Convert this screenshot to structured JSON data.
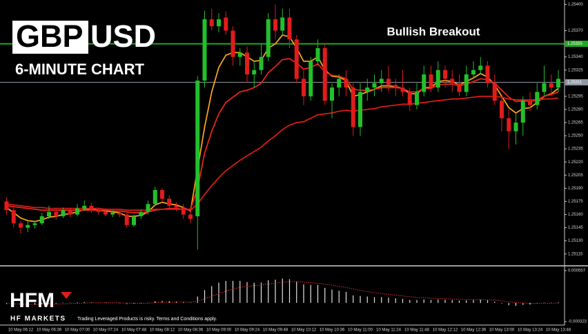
{
  "chart_data": {
    "type": "candlestick",
    "title": {
      "highlight": "GBP",
      "rest": "USD"
    },
    "subtitle": "6-MINUTE CHART",
    "annotation": "Bullish Breakout",
    "categories": [
      null,
      null,
      "10 May 06:12",
      null,
      null,
      null,
      "10 May 06:36",
      null,
      null,
      null,
      "10 May 07:00",
      null,
      null,
      null,
      "10 May 07:24",
      null,
      null,
      null,
      "10 May 07:48",
      null,
      null,
      null,
      "10 May 08:12",
      null,
      null,
      null,
      "10 May 08:36",
      null,
      null,
      null,
      "10 May 09:00",
      null,
      null,
      null,
      "10 May 09:24",
      null,
      null,
      null,
      "10 May 09:48",
      null,
      null,
      null,
      "10 May 10:12",
      null,
      null,
      null,
      "10 May 10:36",
      null,
      null,
      null,
      "10 May 11:00",
      null,
      null,
      null,
      "10 May 11:24",
      null,
      null,
      null,
      "10 May 11:48",
      null,
      null,
      null,
      "10 May 12:12",
      null,
      null,
      null,
      "10 May 12:36",
      null,
      null,
      null,
      "10 May 13:00",
      null,
      null,
      null,
      "10 May 13:24",
      null,
      null,
      null,
      "10 May 13:48"
    ],
    "open": [
      1.25175,
      1.25165,
      1.2515,
      1.25145,
      1.25148,
      1.2515,
      1.25158,
      1.25163,
      1.25158,
      1.25165,
      1.2516,
      1.25167,
      1.2517,
      1.25165,
      1.25163,
      1.2516,
      1.25162,
      1.2516,
      1.25148,
      1.25158,
      1.25163,
      1.25172,
      1.25188,
      1.25178,
      1.2517,
      1.25168,
      1.2516,
      1.25158,
      1.25313,
      1.25383,
      1.25375,
      1.25385,
      1.2537,
      1.2534,
      1.25345,
      1.2532,
      1.25325,
      1.2534,
      1.25383,
      1.2537,
      1.25385,
      1.2536,
      1.25315,
      1.25295,
      1.25335,
      1.2535,
      1.2529,
      1.25305,
      1.25315,
      1.25305,
      1.2526,
      1.253,
      1.25305,
      1.2531,
      1.25315,
      1.25308,
      1.25305,
      1.253,
      1.25285,
      1.253,
      1.2532,
      1.25305,
      1.25325,
      1.25315,
      1.2531,
      1.253,
      1.2532,
      1.25325,
      1.2533,
      1.2531,
      1.2529,
      1.2527,
      1.25255,
      1.25265,
      1.2529,
      1.25285,
      1.253,
      1.2531,
      1.25305
    ],
    "high": [
      1.2518,
      1.25168,
      1.25153,
      1.25152,
      1.25153,
      1.25162,
      1.2517,
      1.25166,
      1.25168,
      1.25167,
      1.25172,
      1.25176,
      1.25173,
      1.25168,
      1.25166,
      1.25165,
      1.25164,
      1.25162,
      1.2516,
      1.25166,
      1.25176,
      1.25192,
      1.2519,
      1.25182,
      1.25174,
      1.25172,
      1.25168,
      1.25318,
      1.25393,
      1.25395,
      1.2539,
      1.25392,
      1.25375,
      1.2535,
      1.25352,
      1.25335,
      1.25355,
      1.2539,
      1.254,
      1.25395,
      1.25395,
      1.25365,
      1.25325,
      1.2534,
      1.2536,
      1.25355,
      1.2531,
      1.2532,
      1.25325,
      1.2531,
      1.2531,
      1.25315,
      1.2532,
      1.25325,
      1.2533,
      1.25315,
      1.25325,
      1.25305,
      1.2531,
      1.2533,
      1.2533,
      1.25335,
      1.2533,
      1.25325,
      1.2532,
      1.2533,
      1.25335,
      1.2534,
      1.25335,
      1.2532,
      1.25295,
      1.2528,
      1.25275,
      1.25295,
      1.253,
      1.2531,
      1.2533,
      1.2532,
      1.25325
    ],
    "low": [
      1.2516,
      1.25145,
      1.25138,
      1.2514,
      1.25144,
      1.25148,
      1.25155,
      1.25154,
      1.25156,
      1.25157,
      1.25158,
      1.25164,
      1.25162,
      1.2516,
      1.25158,
      1.25157,
      1.25157,
      1.25145,
      1.25146,
      1.25155,
      1.2516,
      1.2517,
      1.25174,
      1.25166,
      1.25164,
      1.25155,
      1.2515,
      1.2512,
      1.25305,
      1.2537,
      1.25368,
      1.25365,
      1.2533,
      1.2533,
      1.2531,
      1.25305,
      1.2532,
      1.25335,
      1.2536,
      1.25365,
      1.2535,
      1.2531,
      1.25285,
      1.2529,
      1.2533,
      1.25285,
      1.2527,
      1.25295,
      1.25295,
      1.2525,
      1.2525,
      1.2529,
      1.25295,
      1.253,
      1.253,
      1.25295,
      1.25295,
      1.25278,
      1.2528,
      1.25295,
      1.253,
      1.253,
      1.25305,
      1.253,
      1.25295,
      1.25295,
      1.25315,
      1.2532,
      1.25305,
      1.25285,
      1.25255,
      1.25235,
      1.2524,
      1.2525,
      1.25278,
      1.2528,
      1.25295,
      1.25295,
      1.253
    ],
    "close": [
      1.25165,
      1.2515,
      1.25145,
      1.25148,
      1.2515,
      1.25158,
      1.25163,
      1.25158,
      1.25165,
      1.2516,
      1.25167,
      1.2517,
      1.25165,
      1.25163,
      1.2516,
      1.25162,
      1.2516,
      1.25148,
      1.25158,
      1.25163,
      1.25172,
      1.25188,
      1.25178,
      1.2517,
      1.25168,
      1.2516,
      1.25155,
      1.25313,
      1.25383,
      1.25375,
      1.25383,
      1.2537,
      1.2534,
      1.25345,
      1.2532,
      1.25325,
      1.2534,
      1.25383,
      1.2537,
      1.25385,
      1.2536,
      1.25315,
      1.25295,
      1.25335,
      1.2535,
      1.2529,
      1.25305,
      1.25315,
      1.25305,
      1.2526,
      1.253,
      1.25305,
      1.2531,
      1.25315,
      1.25308,
      1.25305,
      1.253,
      1.25285,
      1.253,
      1.2532,
      1.25305,
      1.25325,
      1.25315,
      1.2531,
      1.253,
      1.2532,
      1.25325,
      1.2533,
      1.2531,
      1.2529,
      1.2527,
      1.25255,
      1.25265,
      1.2529,
      1.25285,
      1.253,
      1.2531,
      1.25305,
      1.25315
    ],
    "up_color": "#22c02b",
    "down_color": "#e01c1c",
    "lines": [
      {
        "color": "#f5a31e",
        "values": [
          1.25168,
          1.25162,
          1.25156,
          1.25153,
          1.25152,
          1.25154,
          1.25157,
          1.25158,
          1.2516,
          1.25161,
          1.25163,
          1.25166,
          1.25166,
          1.25165,
          1.25164,
          1.25163,
          1.25162,
          1.25158,
          1.25158,
          1.25159,
          1.25163,
          1.25171,
          1.25174,
          1.25172,
          1.25171,
          1.25168,
          1.25164,
          1.25212,
          1.2526,
          1.253,
          1.25328,
          1.25342,
          1.25345,
          1.25345,
          1.2534,
          1.25335,
          1.25336,
          1.2535,
          1.25355,
          1.25365,
          1.25363,
          1.2535,
          1.25335,
          1.25335,
          1.2534,
          1.25325,
          1.25318,
          1.25317,
          1.25313,
          1.25295,
          1.25297,
          1.253,
          1.25303,
          1.25307,
          1.25307,
          1.25306,
          1.25304,
          1.25298,
          1.25298,
          1.25305,
          1.25305,
          1.25312,
          1.25313,
          1.25312,
          1.25308,
          1.25312,
          1.25316,
          1.25321,
          1.25317,
          1.25308,
          1.25295,
          1.25282,
          1.25276,
          1.25281,
          1.25282,
          1.25288,
          1.25295,
          1.25298,
          1.25304
        ]
      },
      {
        "color": "#e8241c",
        "values": [
          1.2517,
          1.25169,
          1.25168,
          1.25167,
          1.25166,
          1.25165,
          1.25165,
          1.25165,
          1.25165,
          1.25165,
          1.25165,
          1.25165,
          1.25165,
          1.25165,
          1.25165,
          1.25164,
          1.25164,
          1.25163,
          1.25162,
          1.25162,
          1.25163,
          1.25165,
          1.25166,
          1.25167,
          1.25167,
          1.25166,
          1.25166,
          1.2519,
          1.2523,
          1.25255,
          1.25275,
          1.25288,
          1.25294,
          1.253,
          1.25302,
          1.25305,
          1.2531,
          1.25322,
          1.25329,
          1.25337,
          1.25338,
          1.25333,
          1.25326,
          1.25328,
          1.25332,
          1.25323,
          1.25319,
          1.25318,
          1.25315,
          1.25303,
          1.25302,
          1.25302,
          1.25303,
          1.25305,
          1.25305,
          1.25305,
          1.25304,
          1.253,
          1.253,
          1.25304,
          1.25304,
          1.25308,
          1.25309,
          1.25309,
          1.25307,
          1.25309,
          1.25312,
          1.25315,
          1.25314,
          1.2531,
          1.25302,
          1.25294,
          1.25289,
          1.2529,
          1.25289,
          1.25291,
          1.25295,
          1.25297,
          1.253
        ]
      },
      {
        "color": "#d81b16",
        "values": [
          1.25172,
          1.25171,
          1.2517,
          1.25169,
          1.25168,
          1.25168,
          1.25167,
          1.25167,
          1.25167,
          1.25167,
          1.25167,
          1.25167,
          1.25167,
          1.25167,
          1.25166,
          1.25166,
          1.25166,
          1.25165,
          1.25165,
          1.25165,
          1.25165,
          1.25166,
          1.25166,
          1.25166,
          1.25166,
          1.25166,
          1.25165,
          1.25172,
          1.25183,
          1.25193,
          1.25202,
          1.2521,
          1.25216,
          1.25222,
          1.25227,
          1.25232,
          1.25237,
          1.25244,
          1.2525,
          1.25257,
          1.25262,
          1.25265,
          1.25266,
          1.2527,
          1.25274,
          1.25275,
          1.25276,
          1.25278,
          1.25279,
          1.25278,
          1.25279,
          1.2528,
          1.25281,
          1.25283,
          1.25284,
          1.25285,
          1.25286,
          1.25286,
          1.25287,
          1.25288,
          1.25289,
          1.2529,
          1.25291,
          1.25292,
          1.25292,
          1.25293,
          1.25294,
          1.25295,
          1.25295,
          1.25295,
          1.25294,
          1.25292,
          1.25291,
          1.25291,
          1.25291,
          1.25291,
          1.25292,
          1.25292,
          1.25293
        ]
      }
    ],
    "ylim": [
      1.25103,
      1.25405
    ],
    "yticks": [
      {
        "value": 1.254,
        "label": "1.25400"
      },
      {
        "value": 1.2537,
        "label": "1.25370"
      },
      {
        "value": 1.2534,
        "label": "1.25340"
      },
      1.25325,
      1.25295,
      {
        "value": 1.2528,
        "label": "1.25280"
      },
      1.25265,
      {
        "value": 1.2525,
        "label": "1.25250"
      },
      1.25235,
      {
        "value": 1.2522,
        "label": "1.25220"
      },
      1.25205,
      {
        "value": 1.2519,
        "label": "1.25190"
      },
      1.25175,
      {
        "value": 1.2516,
        "label": "1.25160"
      },
      1.25145,
      {
        "value": 1.2513,
        "label": "1.25130"
      },
      1.25115
    ],
    "resistance_level": {
      "value": 1.25355,
      "color": "#22a822"
    },
    "current_price": {
      "value": 1.25311,
      "color": "#8f99a3"
    },
    "oscillator": {
      "histogram": [
        -2e-05,
        -3e-05,
        -3.5e-05,
        -3.5e-05,
        -3e-05,
        -2e-05,
        -1e-05,
        -1e-05,
        0,
        0,
        1e-05,
        1.5e-05,
        1e-05,
        5e-06,
        0,
        0,
        -5e-06,
        -2e-05,
        -1.5e-05,
        -1e-05,
        5e-06,
        3e-05,
        3.5e-05,
        3e-05,
        2.5e-05,
        1.5e-05,
        5e-06,
        0.00011,
        0.00022,
        0.00029,
        0.00035,
        0.00038,
        0.00038,
        0.00038,
        0.00036,
        0.00035,
        0.00035,
        0.00039,
        0.0004,
        0.00042,
        0.00041,
        0.00037,
        0.00032,
        0.00031,
        0.00031,
        0.00026,
        0.00023,
        0.00021,
        0.00019,
        0.00013,
        0.00012,
        0.00011,
        0.0001,
        0.0001,
        9e-05,
        8e-05,
        7e-05,
        5e-05,
        5e-05,
        6e-05,
        5e-05,
        6e-05,
        5.5e-05,
        5e-05,
        4e-05,
        4.5e-05,
        5e-05,
        5.5e-05,
        4.5e-05,
        2e-05,
        -1e-05,
        -4e-05,
        -5e-05,
        -3.5e-05,
        -3e-05,
        -1.5e-05,
        0,
        0,
        1e-05
      ],
      "signal": [
        -1e-05,
        -1.5e-05,
        -2e-05,
        -2.4e-05,
        -2.6e-05,
        -2.5e-05,
        -2.2e-05,
        -2e-05,
        -1.6e-05,
        -1.2e-05,
        -8e-06,
        -3e-06,
        0,
        1e-06,
        1e-06,
        1e-06,
        0,
        -4e-06,
        -6e-06,
        -7e-06,
        -5e-06,
        2e-06,
        8e-06,
        1.2e-05,
        1.5e-05,
        1.5e-05,
        1.3e-05,
        3.3e-05,
        7e-05,
        0.000114,
        0.000161,
        0.000204,
        0.00024,
        0.000268,
        0.000286,
        0.000299,
        0.000309,
        0.000325,
        0.00034,
        0.000356,
        0.000367,
        0.000367,
        0.000358,
        0.000348,
        0.00034,
        0.000324,
        0.000305,
        0.000286,
        0.000267,
        0.00024,
        0.000216,
        0.000195,
        0.000176,
        0.000161,
        0.000147,
        0.000133,
        0.000121,
        0.000107,
        9.6e-05,
        8.9e-05,
        8.1e-05,
        7.7e-05,
        7.3e-05,
        6.8e-05,
        6.2e-05,
        5.9e-05,
        5.7e-05,
        5.6e-05,
        5.4e-05,
        4.7e-05,
        3.5e-05,
        2e-05,
        6e-06,
        -2e-06,
        -8e-06,
        -9e-06,
        -7e-06,
        -6e-06,
        -3e-06
      ],
      "histogram_color": "#e6e6e6",
      "signal_color": "#e03030",
      "ylim": [
        -0.000323,
        0.000557
      ],
      "yticks": [
        0.000557,
        -0.000323
      ]
    }
  },
  "branding": {
    "logo": "HFM",
    "name": "HF MARKETS",
    "disclaimer": "Trading Leveraged Products is risky. Terms and Conditions apply."
  }
}
